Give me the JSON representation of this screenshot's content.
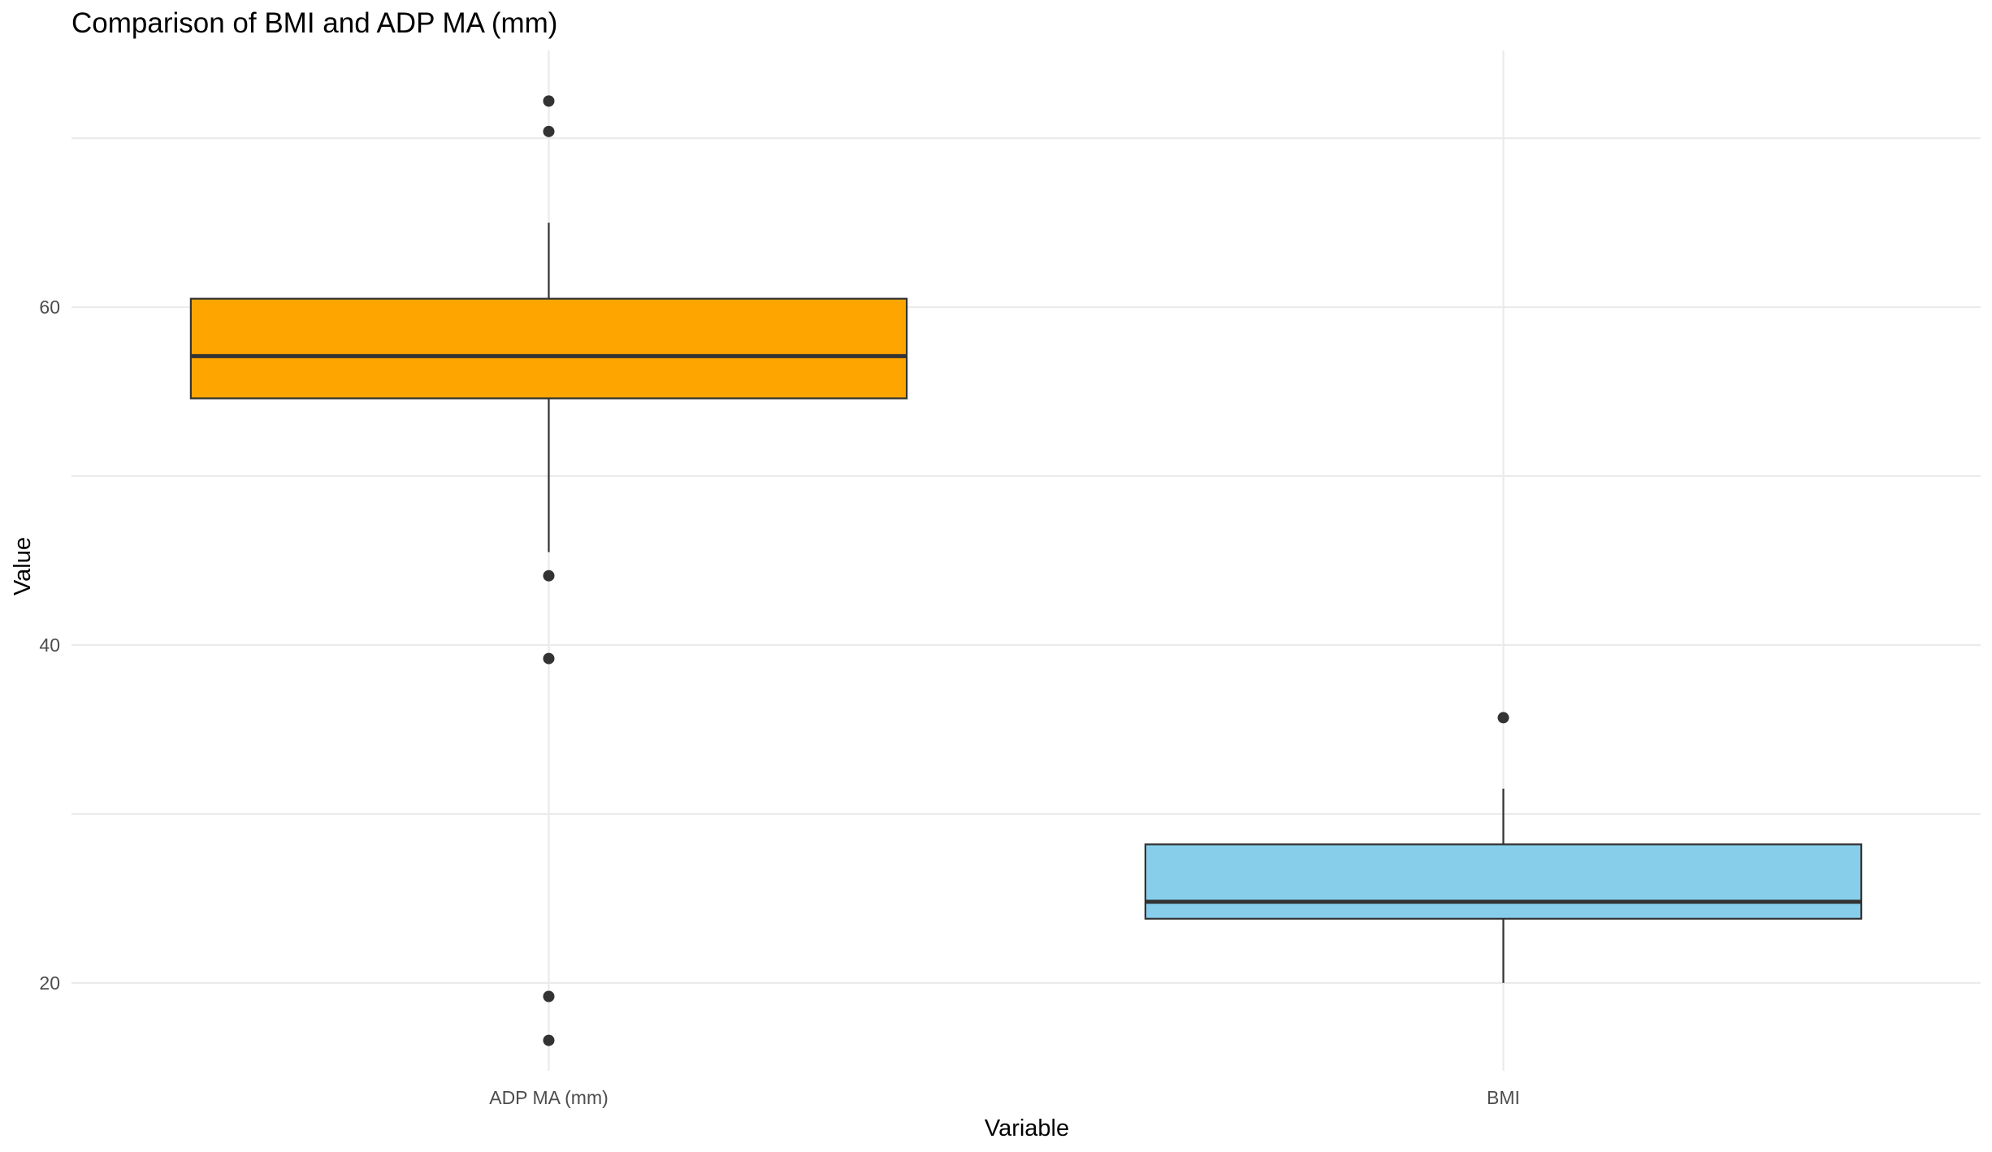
{
  "colors": {
    "ADP MA (mm)": "#FFA500",
    "BMI": "#87CEEB",
    "outline": "#333333",
    "grid": "#EBEBEB"
  },
  "chart_data": {
    "type": "boxplot",
    "title": "Comparison of BMI and ADP MA (mm)",
    "xlabel": "Variable",
    "ylabel": "Value",
    "categories": [
      "ADP MA (mm)",
      "BMI"
    ],
    "ylim": [
      14.8,
      75.2
    ],
    "y_ticks": [
      20,
      40,
      60
    ],
    "grid": true,
    "legend": "none",
    "boxes": [
      {
        "category": "ADP MA (mm)",
        "whisker_low": 45.5,
        "q1": 54.6,
        "median": 57.1,
        "q3": 60.5,
        "whisker_high": 65.0,
        "outliers": [
          72.2,
          70.4,
          44.1,
          39.2,
          19.2,
          16.6
        ]
      },
      {
        "category": "BMI",
        "whisker_low": 20.0,
        "q1": 23.8,
        "median": 24.8,
        "q3": 28.2,
        "whisker_high": 31.5,
        "outliers": [
          35.7
        ]
      }
    ]
  }
}
